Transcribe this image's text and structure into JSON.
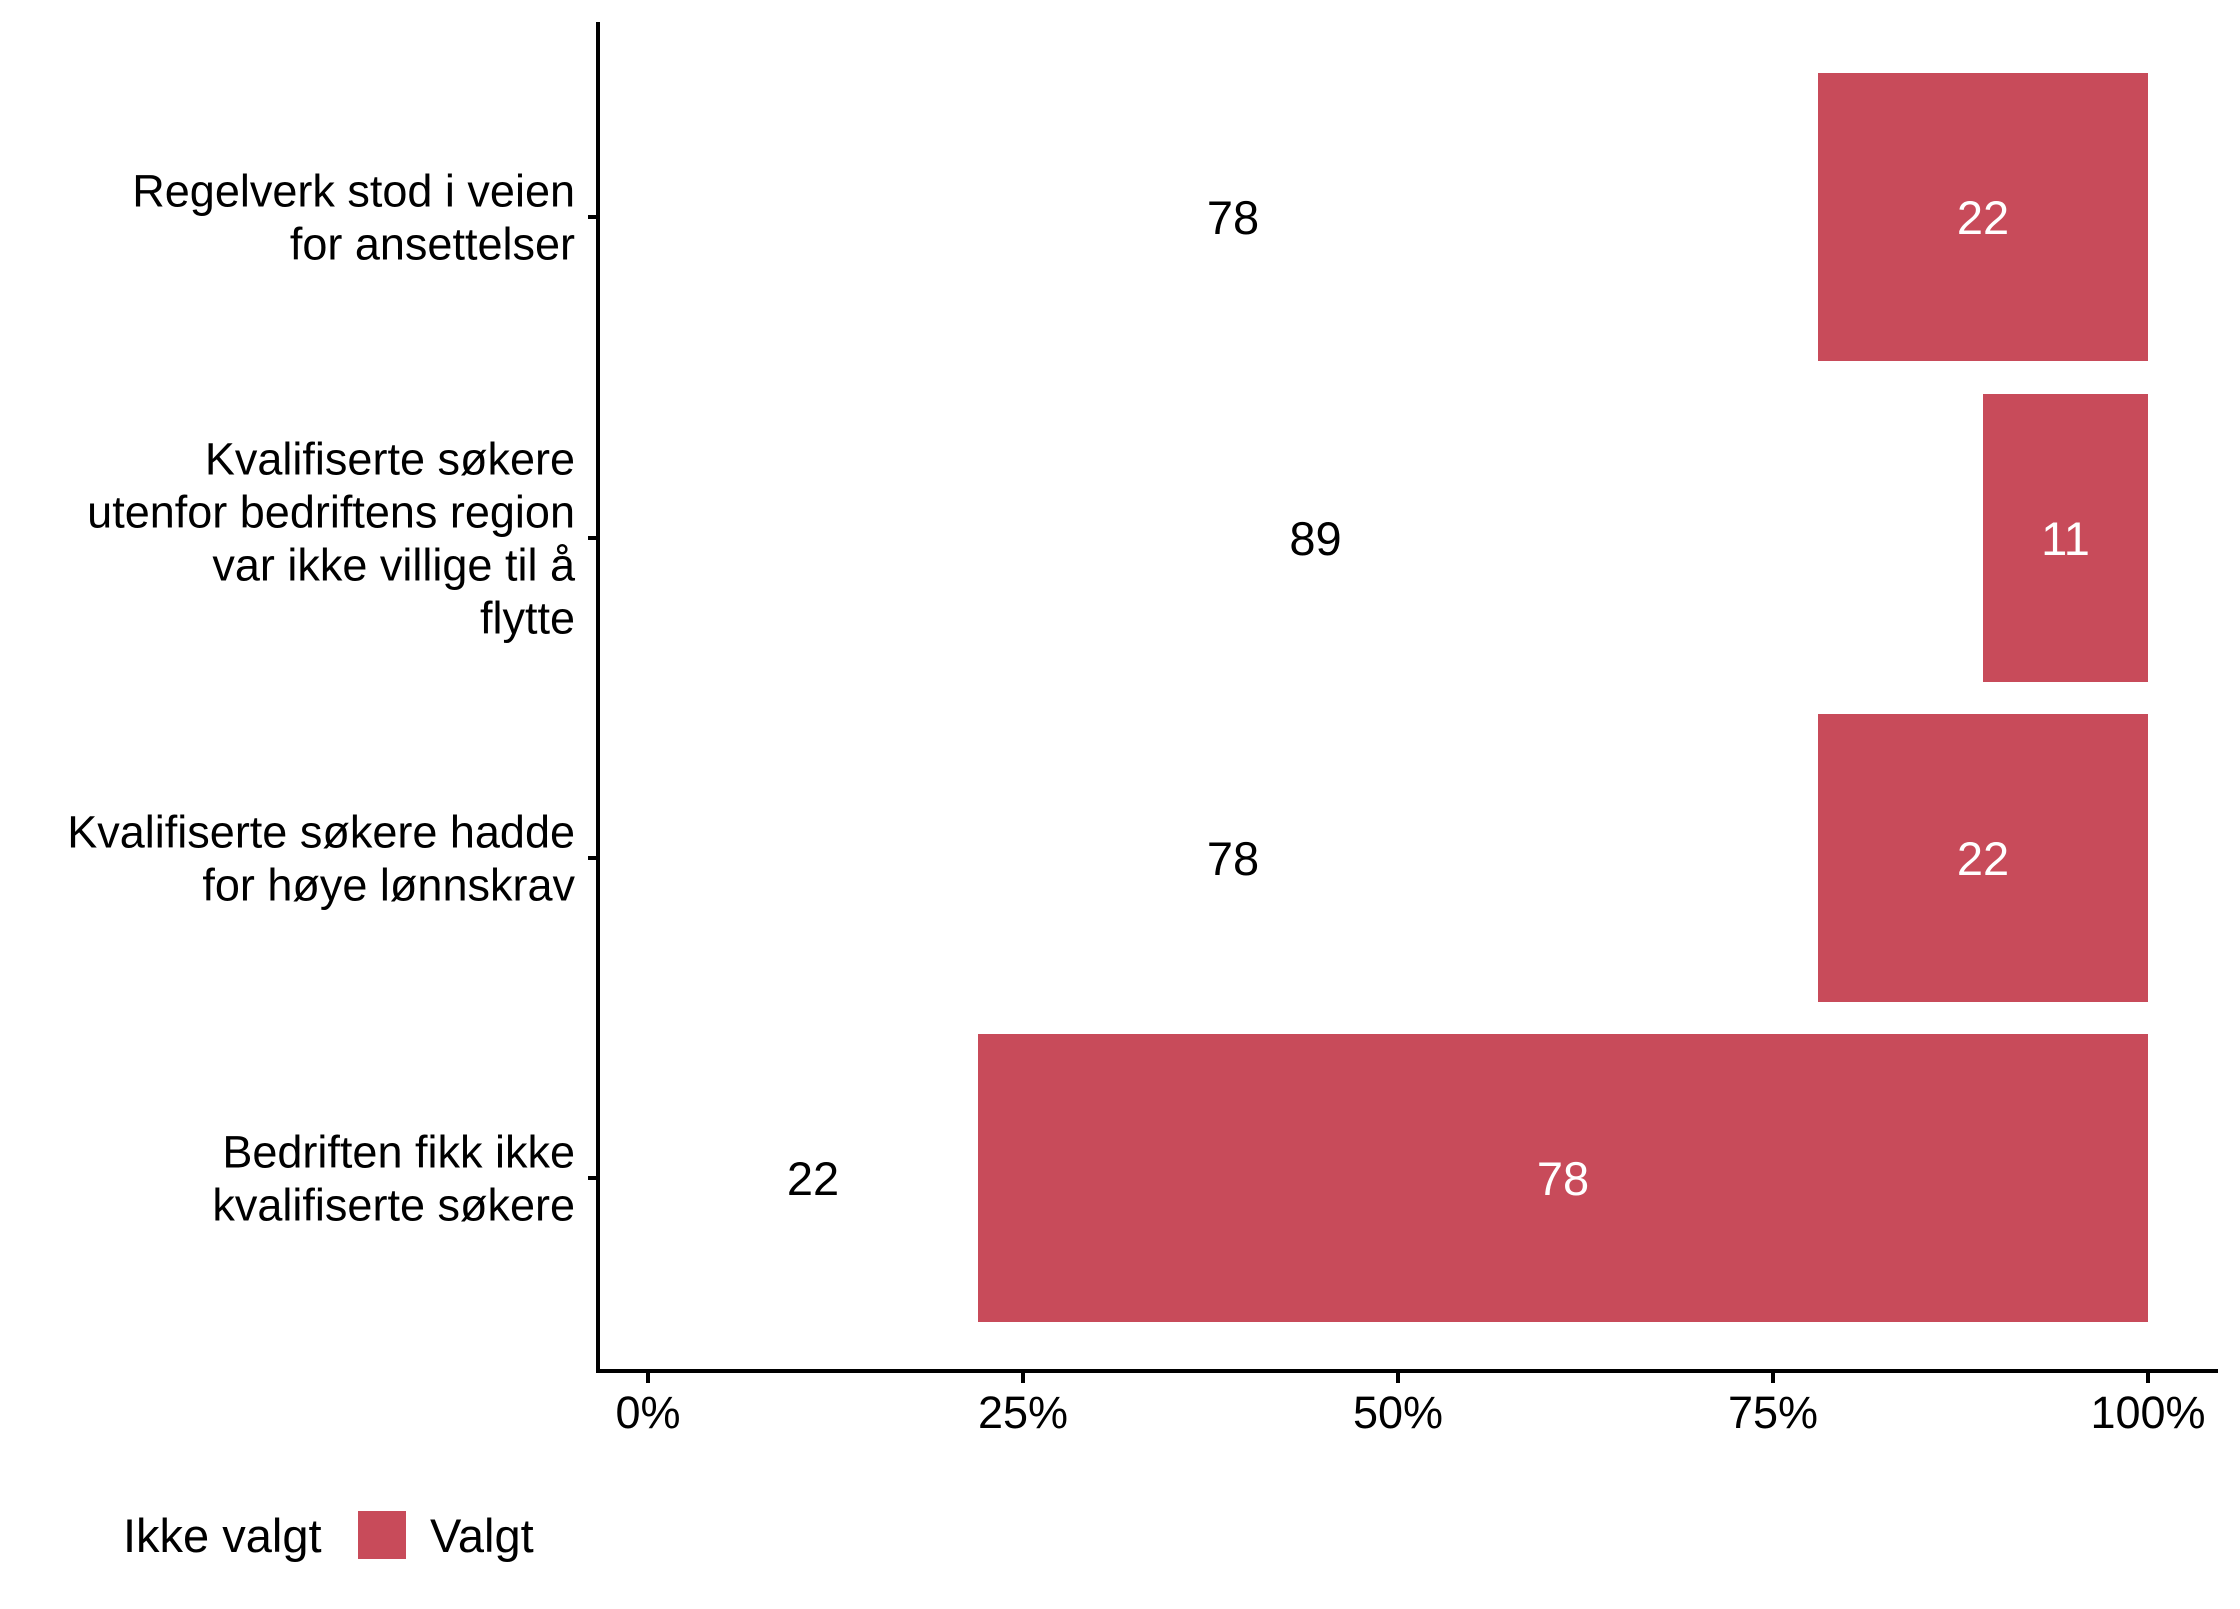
{
  "chart_data": {
    "type": "bar",
    "orientation": "horizontal",
    "stacked": true,
    "percent_scale": true,
    "categories": [
      [
        "Regelverk stod i veien",
        "for ansettelser"
      ],
      [
        "Kvalifiserte søkere",
        "utenfor bedriftens region",
        "var ikke villige til å",
        "flytte"
      ],
      [
        "Kvalifiserte søkere hadde",
        "for høye lønnskrav"
      ],
      [
        "Bedriften fikk ikke",
        "kvalifiserte søkere"
      ]
    ],
    "series": [
      {
        "name": "Ikke valgt",
        "color": "#ffffff",
        "label_color": "#000000",
        "values": [
          78,
          89,
          78,
          22
        ]
      },
      {
        "name": "Valgt",
        "color": "#c84b5a",
        "label_color": "#ffffff",
        "values": [
          22,
          11,
          22,
          78
        ]
      }
    ],
    "xlim": [
      0,
      100
    ],
    "x_ticks": [
      0,
      25,
      50,
      75,
      100
    ],
    "x_tick_labels": [
      "0%",
      "25%",
      "50%",
      "75%",
      "100%"
    ],
    "title": "",
    "xlabel": "",
    "ylabel": "",
    "legend": {
      "position": "bottom-left",
      "entries": [
        "Ikke valgt",
        "Valgt"
      ]
    },
    "grid": false
  }
}
